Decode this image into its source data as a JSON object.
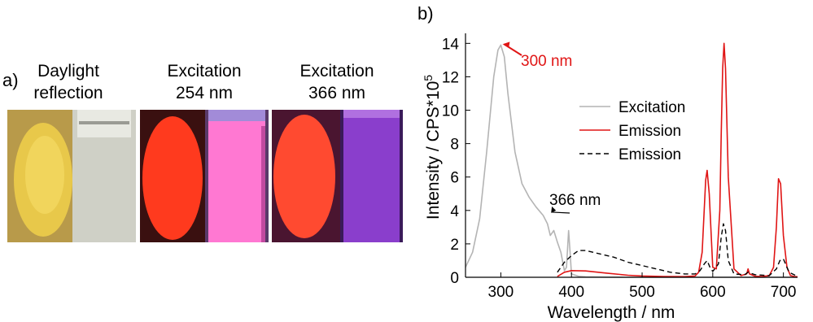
{
  "panel_a": {
    "label": "a)",
    "captions": [
      {
        "line1": "Daylight",
        "line2": "reflection"
      },
      {
        "line1": "Excitation",
        "line2": "254 nm"
      },
      {
        "line1": "Excitation",
        "line2": "366 nm"
      }
    ],
    "colors": {
      "daylight_powder": "#e8c84a",
      "daylight_bg": "#b89a4a",
      "daylight_vial": "#cfd0c6",
      "uv254_powder": "#ff3a1e",
      "uv254_bg": "#3a1010",
      "uv254_vial": "#ff78d2",
      "uv366_powder": "#ff4a30",
      "uv366_bg": "#4a1530",
      "uv366_vial": "#8a3ecc"
    }
  },
  "panel_b": {
    "label": "b)",
    "annotations": {
      "peak": "300 nm",
      "shoulder": "366 nm"
    }
  },
  "chart_data": {
    "type": "line",
    "xlabel": "Wavelength / nm",
    "ylabel": "Intensity / CPS*10",
    "ylabel_superscript": "5",
    "xlim": [
      250,
      720
    ],
    "ylim": [
      0,
      14.6
    ],
    "xticks": [
      300,
      400,
      500,
      600,
      700
    ],
    "yticks": [
      0,
      2,
      4,
      6,
      8,
      10,
      12,
      14
    ],
    "legend_position": "center-right",
    "series": [
      {
        "name": "Excitation",
        "color": "#b4b4b4",
        "dash": "solid",
        "x": [
          250,
          260,
          270,
          280,
          290,
          296,
          300,
          305,
          310,
          320,
          330,
          340,
          350,
          360,
          366,
          370,
          375,
          380,
          385,
          390,
          393,
          396,
          398,
          400,
          410,
          420,
          450,
          480,
          500,
          540,
          580,
          620,
          660,
          720
        ],
        "y": [
          0.6,
          1.5,
          3.5,
          7.5,
          12.0,
          13.6,
          13.9,
          13.2,
          11.0,
          7.5,
          5.6,
          4.8,
          4.2,
          3.7,
          3.2,
          2.5,
          2.8,
          2.1,
          1.5,
          0.4,
          0.6,
          2.8,
          1.5,
          0.2,
          0.06,
          0.03,
          0.01,
          0.0,
          0.0,
          0.0,
          0.0,
          0.0,
          0.0,
          0.0
        ]
      },
      {
        "name": "Emission",
        "color": "#e01515",
        "dash": "solid",
        "x": [
          380,
          390,
          400,
          420,
          450,
          480,
          500,
          530,
          560,
          575,
          580,
          585,
          590,
          592,
          595,
          600,
          605,
          610,
          612,
          614,
          616,
          618,
          622,
          630,
          640,
          648,
          650,
          652,
          660,
          670,
          680,
          686,
          690,
          693,
          696,
          700,
          705,
          710,
          715,
          720
        ],
        "y": [
          0.05,
          0.3,
          0.4,
          0.38,
          0.25,
          0.12,
          0.08,
          0.05,
          0.04,
          0.08,
          0.3,
          1.5,
          5.8,
          6.4,
          5.0,
          0.6,
          0.5,
          4.0,
          8.5,
          12.5,
          14.0,
          12.5,
          6.0,
          0.5,
          0.1,
          0.2,
          0.5,
          0.2,
          0.06,
          0.05,
          0.1,
          0.6,
          3.0,
          5.9,
          5.6,
          2.5,
          0.6,
          0.1,
          0.05,
          0.03
        ]
      },
      {
        "name": "Emission",
        "color": "#000000",
        "dash": "dashed",
        "x": [
          380,
          390,
          400,
          410,
          420,
          440,
          460,
          480,
          500,
          520,
          540,
          560,
          575,
          582,
          588,
          592,
          596,
          600,
          608,
          612,
          615,
          618,
          622,
          630,
          645,
          650,
          660,
          680,
          690,
          695,
          700,
          708,
          720
        ],
        "y": [
          0.3,
          0.9,
          1.3,
          1.6,
          1.6,
          1.4,
          1.2,
          0.9,
          0.7,
          0.5,
          0.3,
          0.2,
          0.2,
          0.4,
          0.8,
          1.0,
          0.6,
          0.35,
          0.8,
          2.4,
          3.2,
          2.8,
          1.0,
          0.2,
          0.15,
          0.3,
          0.15,
          0.1,
          0.5,
          1.0,
          1.1,
          0.3,
          0.05
        ]
      }
    ]
  }
}
